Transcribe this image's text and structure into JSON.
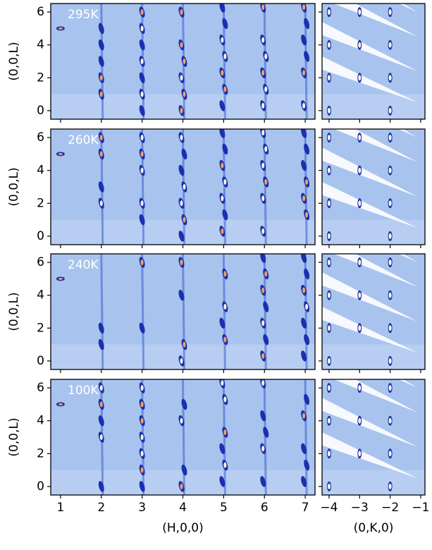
{
  "chart_data": [
    {
      "type": "heatmap",
      "title": "295K",
      "ylabel": "(0,0,L)",
      "xlim": [
        0.76,
        7.24
      ],
      "ylim": [
        -0.52,
        6.52
      ],
      "xticks": [
        1,
        2,
        3,
        4,
        5,
        6,
        7
      ],
      "yticks": [
        0,
        2,
        4,
        6
      ]
    },
    {
      "type": "heatmap",
      "xlim": [
        -4.23,
        -0.86
      ],
      "ylim": [
        -0.52,
        6.52
      ],
      "xticks": [
        {
          "value": -4,
          "label": "−4"
        },
        {
          "value": -3,
          "label": "−3"
        },
        {
          "value": -2,
          "label": "−2"
        },
        {
          "value": -1,
          "label": "−1"
        }
      ],
      "yticks": [
        0,
        2,
        4,
        6
      ]
    },
    {
      "type": "heatmap",
      "title": "260K",
      "ylabel": "(0,0,L)",
      "xlim": [
        0.76,
        7.24
      ],
      "ylim": [
        -0.52,
        6.52
      ],
      "xticks": [
        1,
        2,
        3,
        4,
        5,
        6,
        7
      ],
      "yticks": [
        0,
        2,
        4,
        6
      ]
    },
    {
      "type": "heatmap",
      "xlim": [
        -4.23,
        -0.86
      ],
      "ylim": [
        -0.52,
        6.52
      ],
      "xticks": [
        {
          "value": -4,
          "label": "−4"
        },
        {
          "value": -3,
          "label": "−3"
        },
        {
          "value": -2,
          "label": "−2"
        },
        {
          "value": -1,
          "label": "−1"
        }
      ],
      "yticks": [
        0,
        2,
        4,
        6
      ]
    },
    {
      "type": "heatmap",
      "title": "240K",
      "ylabel": "(0,0,L)",
      "xlim": [
        0.76,
        7.24
      ],
      "ylim": [
        -0.52,
        6.52
      ],
      "xticks": [
        1,
        2,
        3,
        4,
        5,
        6,
        7
      ],
      "yticks": [
        0,
        2,
        4,
        6
      ]
    },
    {
      "type": "heatmap",
      "xlim": [
        -4.23,
        -0.86
      ],
      "ylim": [
        -0.52,
        6.52
      ],
      "xticks": [
        {
          "value": -4,
          "label": "−4"
        },
        {
          "value": -3,
          "label": "−3"
        },
        {
          "value": -2,
          "label": "−2"
        },
        {
          "value": -1,
          "label": "−1"
        }
      ],
      "yticks": [
        0,
        2,
        4,
        6
      ]
    },
    {
      "type": "heatmap",
      "title": "100K",
      "ylabel": "(0,0,L)",
      "xlabel": "(H,0,0)",
      "xlim": [
        0.76,
        7.24
      ],
      "ylim": [
        -0.52,
        6.52
      ],
      "xticks": [
        1,
        2,
        3,
        4,
        5,
        6,
        7
      ],
      "yticks": [
        0,
        2,
        4,
        6
      ]
    },
    {
      "type": "heatmap",
      "xlabel": "(0,K,0)",
      "xlim": [
        -4.23,
        -0.86
      ],
      "ylim": [
        -0.52,
        6.52
      ],
      "xticks": [
        {
          "value": -4,
          "label": "−4"
        },
        {
          "value": -3,
          "label": "−3"
        },
        {
          "value": -2,
          "label": "−2"
        },
        {
          "value": -1,
          "label": "−1"
        }
      ],
      "yticks": [
        0,
        2,
        4,
        6
      ]
    }
  ]
}
